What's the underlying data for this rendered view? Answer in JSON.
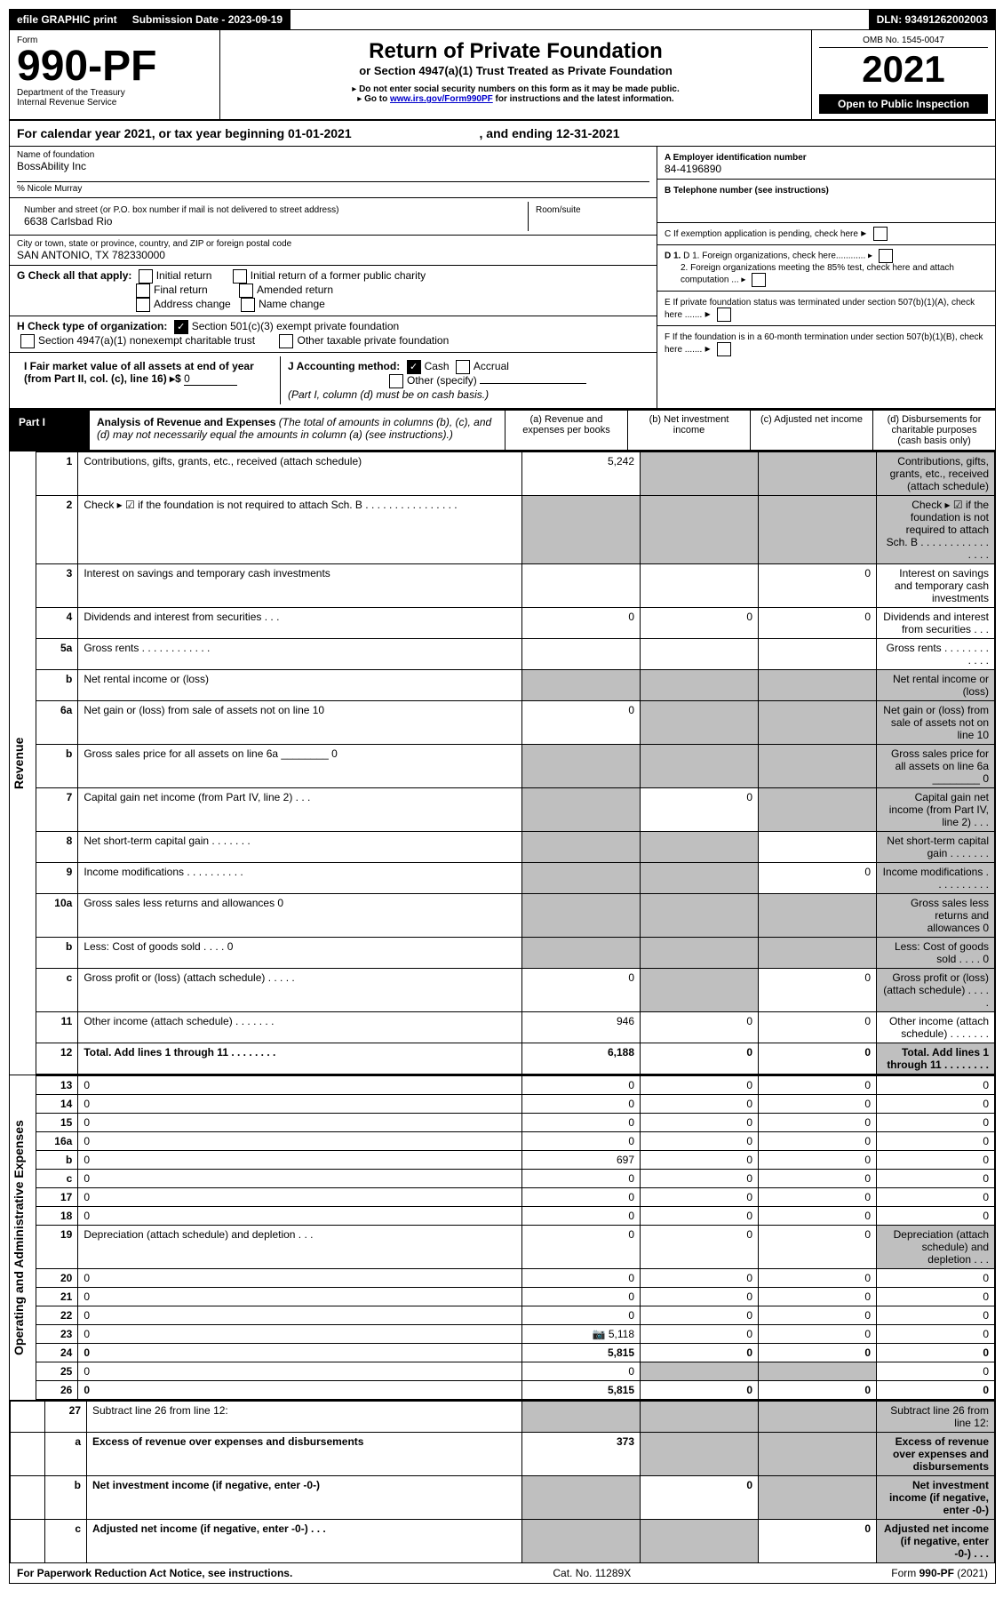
{
  "header_bar": {
    "efile": "efile GRAPHIC print",
    "sub_label": "Submission Date - 2023-09-19",
    "dln": "DLN: 93491262002003"
  },
  "form_head": {
    "form_word": "Form",
    "form_no": "990-PF",
    "dept": "Department of the Treasury",
    "irs": "Internal Revenue Service",
    "title": "Return of Private Foundation",
    "subtitle": "or Section 4947(a)(1) Trust Treated as Private Foundation",
    "warn1": "Do not enter social security numbers on this form as it may be made public.",
    "warn2": "Go to ",
    "warn2_link": "www.irs.gov/Form990PF",
    "warn2_rest": " for instructions and the latest information.",
    "omb": "OMB No. 1545-0047",
    "year": "2021",
    "open": "Open to Public Inspection"
  },
  "cal": {
    "text": "For calendar year 2021, or tax year beginning 01-01-2021",
    "mid": ", and ending 12-31-2021"
  },
  "id": {
    "name_lbl": "Name of foundation",
    "name": "BossAbility Inc",
    "co": "% Nicole Murray",
    "addr_lbl": "Number and street (or P.O. box number if mail is not delivered to street address)",
    "addr": "6638 Carlsbad Rio",
    "room_lbl": "Room/suite",
    "city_lbl": "City or town, state or province, country, and ZIP or foreign postal code",
    "city": "SAN ANTONIO, TX  782330000",
    "a_lbl": "A Employer identification number",
    "ein": "84-4196890",
    "b_lbl": "B Telephone number (see instructions)",
    "c_lbl": "C If exemption application is pending, check here",
    "g_lbl": "G Check all that apply:",
    "g_opts": [
      "Initial return",
      "Initial return of a former public charity",
      "Final return",
      "Amended return",
      "Address change",
      "Name change"
    ],
    "d1": "D 1. Foreign organizations, check here............",
    "d2": "2. Foreign organizations meeting the 85% test, check here and attach computation ...",
    "h_lbl": "H Check type of organization:",
    "h1": "Section 501(c)(3) exempt private foundation",
    "h2": "Section 4947(a)(1) nonexempt charitable trust",
    "h3": "Other taxable private foundation",
    "e_lbl": "E  If private foundation status was terminated under section 507(b)(1)(A), check here .......",
    "i_lbl": "I Fair market value of all assets at end of year (from Part II, col. (c), line 16) ▸$ ",
    "i_val": "0",
    "j_lbl": "J Accounting method:",
    "j_cash": "Cash",
    "j_acc": "Accrual",
    "j_oth": "Other (specify)",
    "j_note": "(Part I, column (d) must be on cash basis.)",
    "f_lbl": "F  If the foundation is in a 60-month termination under section 507(b)(1)(B), check here ......."
  },
  "part1": {
    "tag": "Part I",
    "title": "Analysis of Revenue and Expenses",
    "note": " (The total of amounts in columns (b), (c), and (d) may not necessarily equal the amounts in column (a) (see instructions).)",
    "ca": "(a)    Revenue and expenses per books",
    "cb": "(b)    Net investment income",
    "cc": "(c)   Adjusted net income",
    "cd": "(d)   Disbursements for charitable purposes (cash basis only)"
  },
  "vlabels": {
    "rev": "Revenue",
    "exp": "Operating and Administrative Expenses"
  },
  "rows": [
    {
      "n": "1",
      "d": "Contributions, gifts, grants, etc., received (attach schedule)",
      "a": "5,242",
      "shade": [
        "b",
        "c",
        "d"
      ]
    },
    {
      "n": "2",
      "d": "Check ▸ ☑ if the foundation is not required to attach Sch. B    .   .   .   .   .   .   .   .   .   .   .   .   .   .   .   .",
      "shade": [
        "a",
        "b",
        "c",
        "d"
      ]
    },
    {
      "n": "3",
      "d": "Interest on savings and temporary cash investments",
      "c": "0"
    },
    {
      "n": "4",
      "d": "Dividends and interest from securities     .   .   .",
      "a": "0",
      "b": "0",
      "c": "0"
    },
    {
      "n": "5a",
      "d": "Gross rents     .   .   .   .   .   .   .   .   .   .   .   ."
    },
    {
      "n": "b",
      "d": "Net rental income or (loss)",
      "shade": [
        "a",
        "b",
        "c",
        "d"
      ]
    },
    {
      "n": "6a",
      "d": "Net gain or (loss) from sale of assets not on line 10",
      "a": "0",
      "shade": [
        "b",
        "c",
        "d"
      ]
    },
    {
      "n": "b",
      "d": "Gross sales price for all assets on line 6a ________ 0",
      "shade": [
        "a",
        "b",
        "c",
        "d"
      ]
    },
    {
      "n": "7",
      "d": "Capital gain net income (from Part IV, line 2)    .   .   .",
      "b": "0",
      "shade": [
        "a",
        "c",
        "d"
      ]
    },
    {
      "n": "8",
      "d": "Net short-term capital gain   .   .   .   .   .   .   .",
      "shade": [
        "a",
        "b",
        "d"
      ]
    },
    {
      "n": "9",
      "d": "Income modifications  .   .   .   .   .   .   .   .   .   .",
      "c": "0",
      "shade": [
        "a",
        "b",
        "d"
      ]
    },
    {
      "n": "10a",
      "d": "Gross sales less returns and allowances          0",
      "shade": [
        "a",
        "b",
        "c",
        "d"
      ]
    },
    {
      "n": "b",
      "d": "Less: Cost of goods sold     .   .   .   .            0",
      "shade": [
        "a",
        "b",
        "c",
        "d"
      ]
    },
    {
      "n": "c",
      "d": "Gross profit or (loss) (attach schedule)     .   .   .   .   .",
      "a": "0",
      "c": "0",
      "shade": [
        "b",
        "d"
      ]
    },
    {
      "n": "11",
      "d": "Other income (attach schedule)    .   .   .   .   .   .   .",
      "a": "946",
      "b": "0",
      "c": "0"
    },
    {
      "n": "12",
      "d": "Total. Add lines 1 through 11    .   .   .   .   .   .   .   .",
      "a": "6,188",
      "b": "0",
      "c": "0",
      "bold": true,
      "shade": [
        "d"
      ]
    },
    {
      "n": "13",
      "d": "0",
      "a": "0",
      "b": "0",
      "c": "0",
      "sec": "exp"
    },
    {
      "n": "14",
      "d": "0",
      "a": "0",
      "b": "0",
      "c": "0"
    },
    {
      "n": "15",
      "d": "0",
      "a": "0",
      "b": "0",
      "c": "0"
    },
    {
      "n": "16a",
      "d": "0",
      "a": "0",
      "b": "0",
      "c": "0"
    },
    {
      "n": "b",
      "d": "0",
      "a": "697",
      "b": "0",
      "c": "0"
    },
    {
      "n": "c",
      "d": "0",
      "a": "0",
      "b": "0",
      "c": "0"
    },
    {
      "n": "17",
      "d": "0",
      "a": "0",
      "b": "0",
      "c": "0"
    },
    {
      "n": "18",
      "d": "0",
      "a": "0",
      "b": "0",
      "c": "0"
    },
    {
      "n": "19",
      "d": "Depreciation (attach schedule) and depletion    .   .   .",
      "a": "0",
      "b": "0",
      "c": "0",
      "shade": [
        "d"
      ]
    },
    {
      "n": "20",
      "d": "0",
      "a": "0",
      "b": "0",
      "c": "0"
    },
    {
      "n": "21",
      "d": "0",
      "a": "0",
      "b": "0",
      "c": "0"
    },
    {
      "n": "22",
      "d": "0",
      "a": "0",
      "b": "0",
      "c": "0"
    },
    {
      "n": "23",
      "d": "0",
      "a": "5,118",
      "b": "0",
      "c": "0",
      "icon": true
    },
    {
      "n": "24",
      "d": "0",
      "a": "5,815",
      "b": "0",
      "c": "0",
      "bold": true
    },
    {
      "n": "25",
      "d": "0",
      "a": "0",
      "shade": [
        "b",
        "c"
      ]
    },
    {
      "n": "26",
      "d": "0",
      "a": "5,815",
      "b": "0",
      "c": "0",
      "bold": true
    },
    {
      "n": "27",
      "d": "Subtract line 26 from line 12:",
      "shade": [
        "a",
        "b",
        "c",
        "d"
      ]
    },
    {
      "n": "a",
      "d": "Excess of revenue over expenses and disbursements",
      "a": "373",
      "bold": true,
      "shade": [
        "b",
        "c",
        "d"
      ]
    },
    {
      "n": "b",
      "d": "Net investment income (if negative, enter -0-)",
      "b": "0",
      "bold": true,
      "shade": [
        "a",
        "c",
        "d"
      ]
    },
    {
      "n": "c",
      "d": "Adjusted net income (if negative, enter -0-)    .   .   .",
      "c": "0",
      "bold": true,
      "shade": [
        "a",
        "b",
        "d"
      ]
    }
  ],
  "footer": {
    "l": "For Paperwork Reduction Act Notice, see instructions.",
    "m": "Cat. No. 11289X",
    "r": "Form 990-PF (2021)"
  },
  "colors": {
    "black": "#000000",
    "grey": "#bfbfbf",
    "link": "#0000cc"
  }
}
